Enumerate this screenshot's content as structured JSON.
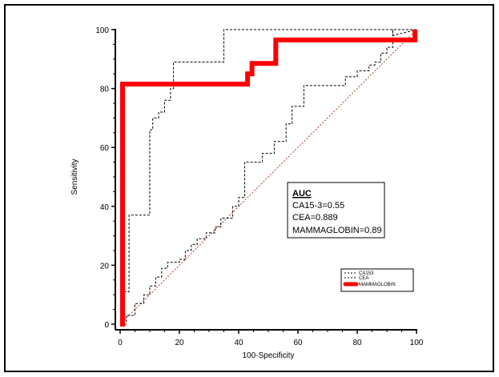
{
  "chart_data": {
    "type": "line",
    "title": "",
    "xlabel": "100-Specificity",
    "ylabel": "Sensitivity",
    "xlim": [
      0,
      100
    ],
    "ylim": [
      0,
      100
    ],
    "xticks": [
      "0",
      "20",
      "40",
      "60",
      "80",
      "100"
    ],
    "yticks": [
      "0",
      "20",
      "40",
      "60",
      "80",
      "100"
    ],
    "grid": false,
    "legend_position": "bottom-right",
    "series": [
      {
        "name": "CA153",
        "style": "dashed",
        "color": "#000000",
        "x": [
          0,
          2,
          2,
          5,
          5,
          8,
          8,
          10,
          10,
          12,
          12,
          14,
          14,
          16,
          16,
          20,
          20,
          22,
          22,
          24,
          24,
          26,
          26,
          29,
          29,
          32,
          32,
          34,
          34,
          38,
          38,
          40,
          40,
          42,
          42,
          48,
          48,
          52,
          52,
          56,
          56,
          58,
          58,
          62,
          62,
          76,
          76,
          80,
          80,
          84,
          84,
          86,
          86,
          88,
          88,
          90,
          90,
          92,
          92,
          100
        ],
        "y": [
          0,
          0,
          3,
          3,
          7,
          7,
          10,
          10,
          13,
          13,
          16,
          16,
          19,
          19,
          21,
          21,
          22,
          22,
          25,
          25,
          27,
          27,
          29,
          29,
          31,
          31,
          33,
          33,
          36,
          36,
          40,
          40,
          43,
          43,
          55,
          55,
          58,
          58,
          62,
          62,
          68,
          68,
          74,
          74,
          81,
          81,
          84,
          84,
          86,
          86,
          88,
          88,
          89,
          89,
          92,
          92,
          94,
          94,
          100,
          100
        ]
      },
      {
        "name": "CEA",
        "style": "dashed",
        "color": "#000000",
        "x": [
          0,
          1,
          1,
          3,
          3,
          10,
          10,
          11,
          11,
          13,
          13,
          15,
          15,
          17,
          17,
          18,
          18,
          35,
          35,
          92,
          92,
          100
        ],
        "y": [
          0,
          0,
          11,
          11,
          37,
          37,
          66,
          66,
          70,
          70,
          72,
          72,
          76,
          76,
          80,
          80,
          89,
          89,
          100,
          100,
          98,
          100
        ]
      },
      {
        "name": "MAMMAGLOBIN",
        "style": "solid-thick",
        "color": "#ff0000",
        "x": [
          0,
          0.8,
          0.8,
          43,
          43,
          44.5,
          44.5,
          52.5,
          52.5,
          99.5,
          99.5
        ],
        "y": [
          0,
          0,
          81.5,
          81.5,
          85,
          85,
          88.5,
          88.5,
          96.5,
          96.5,
          100
        ]
      },
      {
        "name": "reference",
        "style": "dotted",
        "color": "#b23a28",
        "x": [
          0,
          100
        ],
        "y": [
          0,
          100
        ]
      }
    ],
    "annotation": {
      "title": "AUC",
      "lines": [
        "CA15-3=0.55",
        "CEA=0.889",
        "MAMMAGLOBIN=0.89"
      ]
    },
    "legend": [
      "CA153",
      "CEA",
      "MAMMAGLOBIN"
    ]
  }
}
